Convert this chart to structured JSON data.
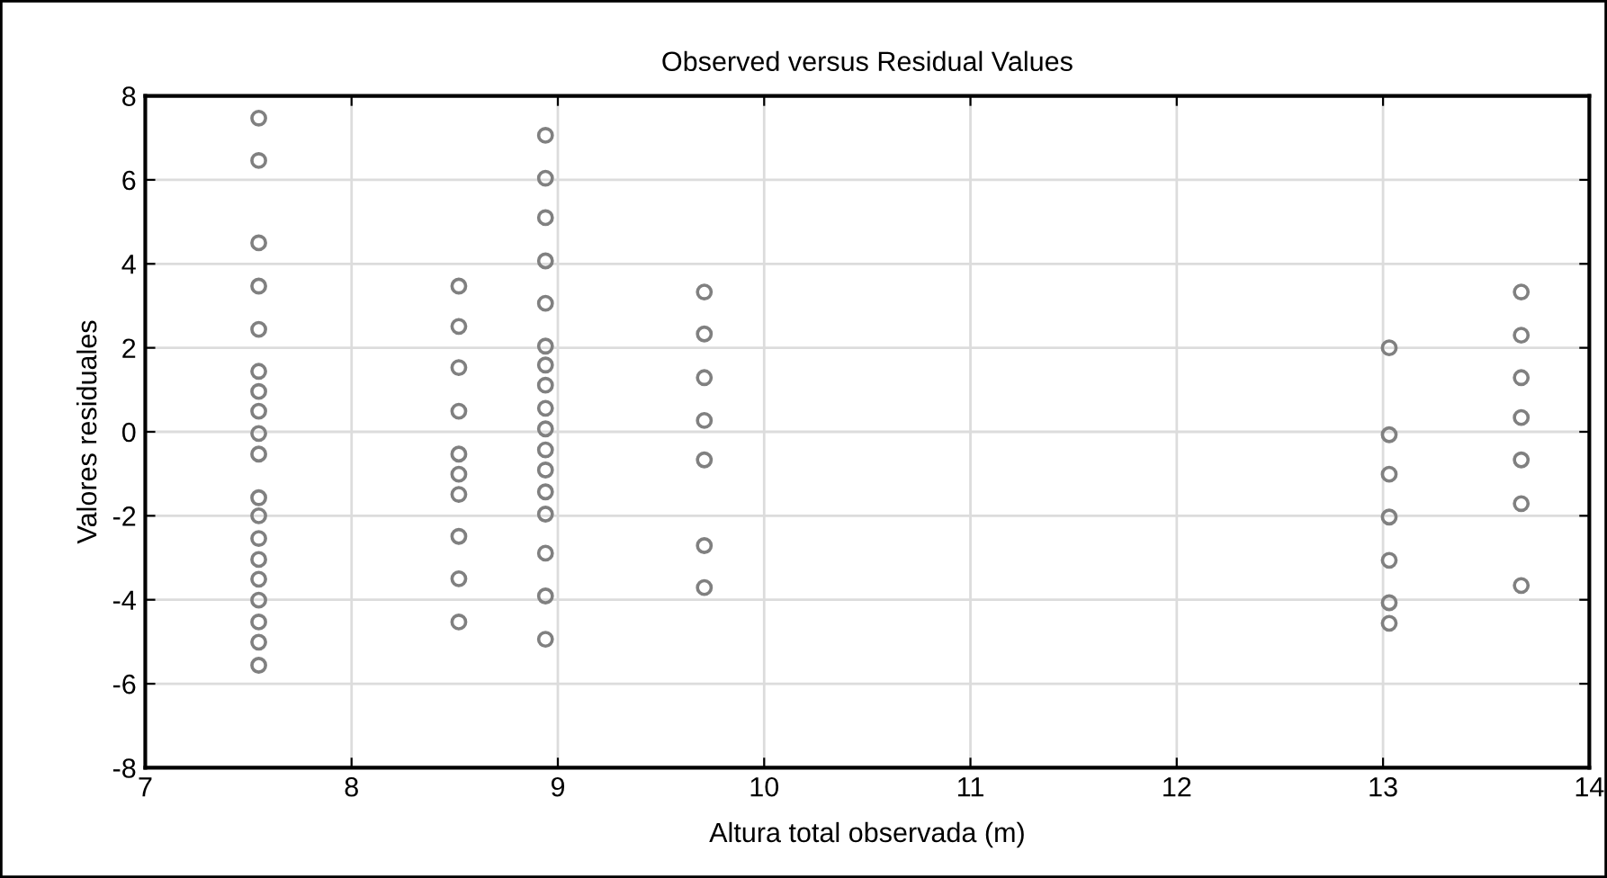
{
  "chart_data": {
    "type": "scatter",
    "title": "Observed versus Residual Values",
    "xlabel": "Altura total observada (m)",
    "ylabel": "Valores residuales",
    "xlim": [
      7,
      14
    ],
    "xticks": [
      7,
      8,
      9,
      10,
      11,
      12,
      13,
      14
    ],
    "ylim": [
      -8,
      8
    ],
    "yticks": [
      -8,
      -6,
      -4,
      -2,
      0,
      2,
      4,
      6,
      8
    ],
    "grid": true,
    "marker": "circle",
    "series": [
      {
        "color": "#808080",
        "x": [
          7.55,
          7.55,
          7.55,
          7.55,
          7.55,
          7.55,
          7.55,
          7.55,
          7.55,
          7.55,
          7.55,
          7.55,
          7.55,
          7.55,
          7.55,
          7.55,
          7.55,
          7.55,
          7.55
        ],
        "values": [
          7.47,
          6.46,
          4.5,
          3.47,
          2.44,
          1.44,
          0.96,
          0.49,
          -0.04,
          -0.53,
          -1.57,
          -2.0,
          -2.54,
          -3.04,
          -3.51,
          -4.01,
          -4.53,
          -5.01,
          -5.56
        ]
      },
      {
        "color": "#808080",
        "x": [
          8.52,
          8.52,
          8.52,
          8.52,
          8.52,
          8.52,
          8.52,
          8.52,
          8.52,
          8.52
        ],
        "values": [
          3.47,
          2.51,
          1.53,
          0.49,
          -0.53,
          -1.01,
          -1.49,
          -2.49,
          -3.5,
          -4.53
        ]
      },
      {
        "color": "#808080",
        "x": [
          8.94,
          8.94,
          8.94,
          8.94,
          8.94,
          8.94,
          8.94,
          8.94,
          8.94,
          8.94,
          8.94,
          8.94,
          8.94,
          8.94,
          8.94,
          8.94,
          8.94
        ],
        "values": [
          7.06,
          6.04,
          5.1,
          4.07,
          3.06,
          2.04,
          1.59,
          1.11,
          0.56,
          0.07,
          -0.43,
          -0.91,
          -1.43,
          -1.96,
          -2.89,
          -3.91,
          -4.94
        ]
      },
      {
        "color": "#808080",
        "x": [
          9.71,
          9.71,
          9.71,
          9.71,
          9.71,
          9.71,
          9.71
        ],
        "values": [
          3.33,
          2.33,
          1.29,
          0.27,
          -0.67,
          -2.71,
          -3.71
        ]
      },
      {
        "color": "#808080",
        "x": [
          13.03,
          13.03,
          13.03,
          13.03,
          13.03,
          13.03,
          13.03
        ],
        "values": [
          2.0,
          -0.07,
          -1.01,
          -2.03,
          -3.06,
          -4.07,
          -4.56
        ]
      },
      {
        "color": "#808080",
        "x": [
          13.67,
          13.67,
          13.67,
          13.67,
          13.67,
          13.67,
          13.67
        ],
        "values": [
          3.33,
          2.3,
          1.29,
          0.34,
          -0.67,
          -1.71,
          -3.66
        ]
      }
    ]
  }
}
